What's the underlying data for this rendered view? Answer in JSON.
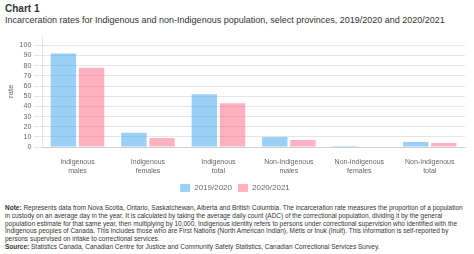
{
  "chart_data": {
    "type": "bar",
    "title": "Chart 1",
    "subtitle": "Incarceration rates for Indigenous and non-Indigenous population, select provinces, 2019/2020 and 2020/2021",
    "categories": [
      "Indigenous males",
      "Indigenous females",
      "Indigenous total",
      "Non-Indigenous males",
      "Non-Indigenous\nfemales",
      "Non-Indigenous total"
    ],
    "series": [
      {
        "name": "2019/2020",
        "values": [
          92,
          14,
          52,
          10,
          1,
          5
        ]
      },
      {
        "name": "2020/2021",
        "values": [
          78,
          9,
          43,
          7,
          0.5,
          4
        ]
      }
    ],
    "ylabel": "rate",
    "ylim": [
      0,
      110
    ],
    "yticks": [
      0,
      10,
      20,
      30,
      40,
      50,
      60,
      70,
      80,
      90,
      100
    ],
    "grid": true,
    "legend": "bottom",
    "annotations": [
      "Note: Represents data from Nova Scotia, Ontario, Saskatchewan, Alberta and British Columbia. The incarceration rate measures the proportion of a population in custody on an average day in the year. It is calculated by taking the average daily count (ADC) of the correctional population, dividing it by the general population estimate for that same year, then multiplying by 10,000. Indigenous identity refers to persons under correctional supervision who identified with the Indigenous peoples of Canada. This includes those who are First Nations (North American Indian), Métis or Inuk (Inuit). This information is self-reported by persons supervised on intake to correctional services.",
      "Source: Statistics Canada, Canadian Centre for Justice and Community Safety Statistics, Canadian Correctional Services Survey."
    ]
  }
}
